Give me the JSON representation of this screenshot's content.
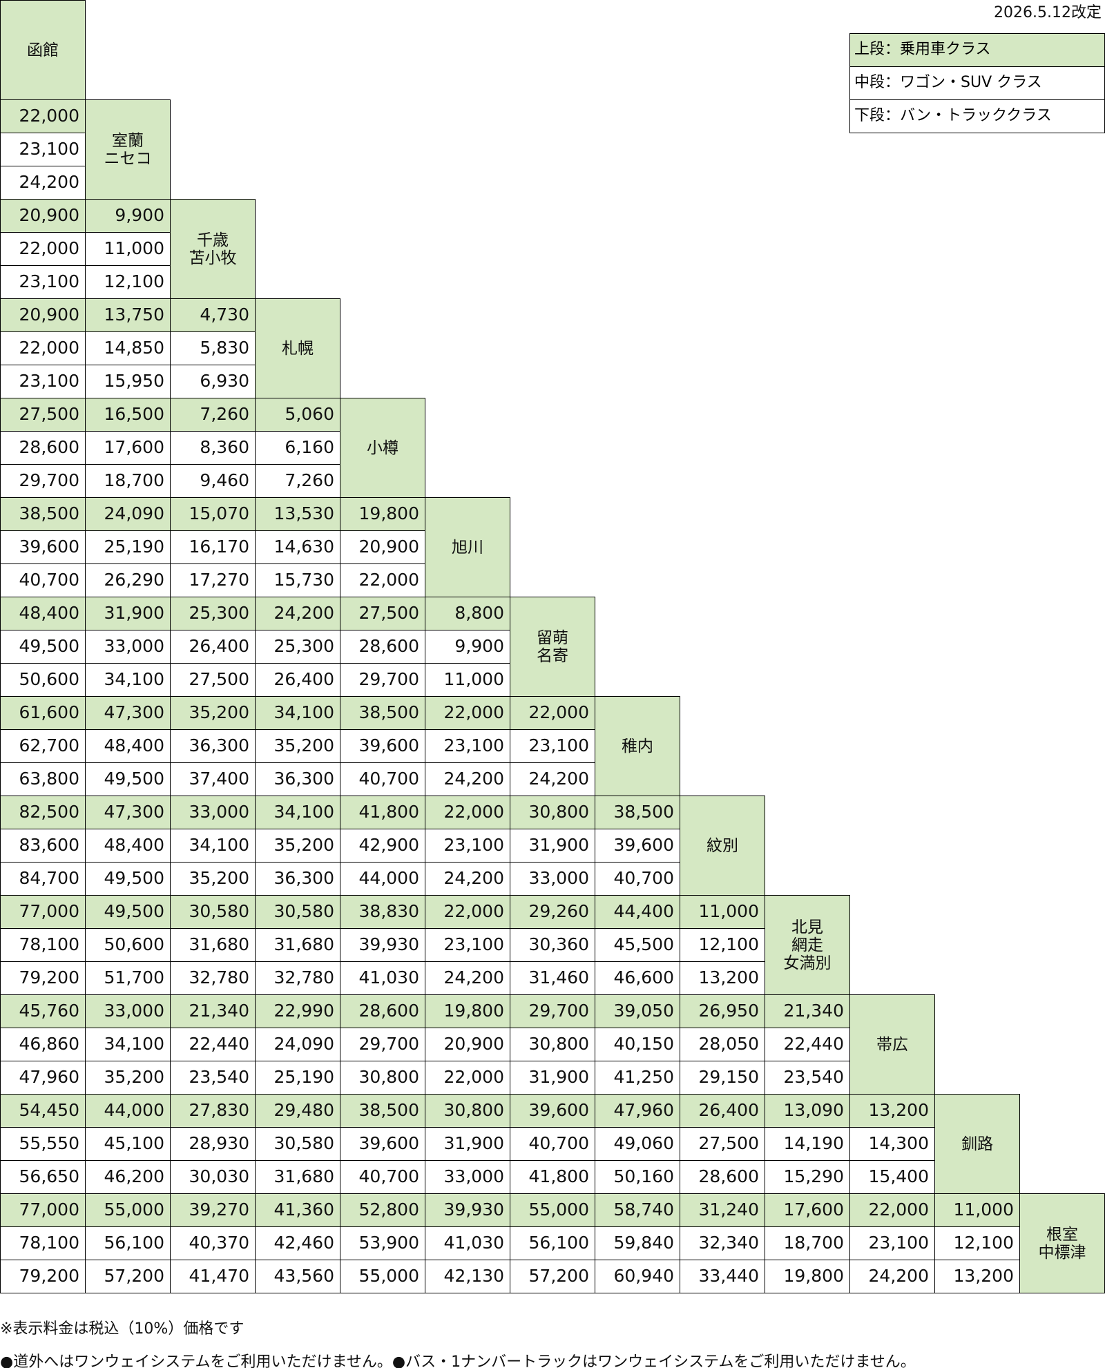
{
  "revision": "2026.5.12改定",
  "legend": [
    "上段：乗用車クラス",
    "中段：ワゴン・SUV クラス",
    "下段：バン・トラッククラス"
  ],
  "stations": [
    [
      "函館"
    ],
    [
      "室蘭",
      "ニセコ"
    ],
    [
      "千歳",
      "苫小牧"
    ],
    [
      "札幌"
    ],
    [
      "小樽"
    ],
    [
      "旭川"
    ],
    [
      "留萌",
      "名寄"
    ],
    [
      "稚内"
    ],
    [
      "紋別"
    ],
    [
      "北見",
      "網走",
      "女満別"
    ],
    [
      "帯広"
    ],
    [
      "釧路"
    ],
    [
      "根室",
      "中標津"
    ]
  ],
  "fares": [
    [],
    [
      [
        "22,000",
        "23,100",
        "24,200"
      ]
    ],
    [
      [
        "20,900",
        "22,000",
        "23,100"
      ],
      [
        "9,900",
        "11,000",
        "12,100"
      ]
    ],
    [
      [
        "20,900",
        "22,000",
        "23,100"
      ],
      [
        "13,750",
        "14,850",
        "15,950"
      ],
      [
        "4,730",
        "5,830",
        "6,930"
      ]
    ],
    [
      [
        "27,500",
        "28,600",
        "29,700"
      ],
      [
        "16,500",
        "17,600",
        "18,700"
      ],
      [
        "7,260",
        "8,360",
        "9,460"
      ],
      [
        "5,060",
        "6,160",
        "7,260"
      ]
    ],
    [
      [
        "38,500",
        "39,600",
        "40,700"
      ],
      [
        "24,090",
        "25,190",
        "26,290"
      ],
      [
        "15,070",
        "16,170",
        "17,270"
      ],
      [
        "13,530",
        "14,630",
        "15,730"
      ],
      [
        "19,800",
        "20,900",
        "22,000"
      ]
    ],
    [
      [
        "48,400",
        "49,500",
        "50,600"
      ],
      [
        "31,900",
        "33,000",
        "34,100"
      ],
      [
        "25,300",
        "26,400",
        "27,500"
      ],
      [
        "24,200",
        "25,300",
        "26,400"
      ],
      [
        "27,500",
        "28,600",
        "29,700"
      ],
      [
        "8,800",
        "9,900",
        "11,000"
      ]
    ],
    [
      [
        "61,600",
        "62,700",
        "63,800"
      ],
      [
        "47,300",
        "48,400",
        "49,500"
      ],
      [
        "35,200",
        "36,300",
        "37,400"
      ],
      [
        "34,100",
        "35,200",
        "36,300"
      ],
      [
        "38,500",
        "39,600",
        "40,700"
      ],
      [
        "22,000",
        "23,100",
        "24,200"
      ],
      [
        "22,000",
        "23,100",
        "24,200"
      ]
    ],
    [
      [
        "82,500",
        "83,600",
        "84,700"
      ],
      [
        "47,300",
        "48,400",
        "49,500"
      ],
      [
        "33,000",
        "34,100",
        "35,200"
      ],
      [
        "34,100",
        "35,200",
        "36,300"
      ],
      [
        "41,800",
        "42,900",
        "44,000"
      ],
      [
        "22,000",
        "23,100",
        "24,200"
      ],
      [
        "30,800",
        "31,900",
        "33,000"
      ],
      [
        "38,500",
        "39,600",
        "40,700"
      ]
    ],
    [
      [
        "77,000",
        "78,100",
        "79,200"
      ],
      [
        "49,500",
        "50,600",
        "51,700"
      ],
      [
        "30,580",
        "31,680",
        "32,780"
      ],
      [
        "30,580",
        "31,680",
        "32,780"
      ],
      [
        "38,830",
        "39,930",
        "41,030"
      ],
      [
        "22,000",
        "23,100",
        "24,200"
      ],
      [
        "29,260",
        "30,360",
        "31,460"
      ],
      [
        "44,400",
        "45,500",
        "46,600"
      ],
      [
        "11,000",
        "12,100",
        "13,200"
      ]
    ],
    [
      [
        "45,760",
        "46,860",
        "47,960"
      ],
      [
        "33,000",
        "34,100",
        "35,200"
      ],
      [
        "21,340",
        "22,440",
        "23,540"
      ],
      [
        "22,990",
        "24,090",
        "25,190"
      ],
      [
        "28,600",
        "29,700",
        "30,800"
      ],
      [
        "19,800",
        "20,900",
        "22,000"
      ],
      [
        "29,700",
        "30,800",
        "31,900"
      ],
      [
        "39,050",
        "40,150",
        "41,250"
      ],
      [
        "26,950",
        "28,050",
        "29,150"
      ],
      [
        "21,340",
        "22,440",
        "23,540"
      ]
    ],
    [
      [
        "54,450",
        "55,550",
        "56,650"
      ],
      [
        "44,000",
        "45,100",
        "46,200"
      ],
      [
        "27,830",
        "28,930",
        "30,030"
      ],
      [
        "29,480",
        "30,580",
        "31,680"
      ],
      [
        "38,500",
        "39,600",
        "40,700"
      ],
      [
        "30,800",
        "31,900",
        "33,000"
      ],
      [
        "39,600",
        "40,700",
        "41,800"
      ],
      [
        "47,960",
        "49,060",
        "50,160"
      ],
      [
        "26,400",
        "27,500",
        "28,600"
      ],
      [
        "13,090",
        "14,190",
        "15,290"
      ],
      [
        "13,200",
        "14,300",
        "15,400"
      ]
    ],
    [
      [
        "77,000",
        "78,100",
        "79,200"
      ],
      [
        "55,000",
        "56,100",
        "57,200"
      ],
      [
        "39,270",
        "40,370",
        "41,470"
      ],
      [
        "41,360",
        "42,460",
        "43,560"
      ],
      [
        "52,800",
        "53,900",
        "55,000"
      ],
      [
        "39,930",
        "41,030",
        "42,130"
      ],
      [
        "55,000",
        "56,100",
        "57,200"
      ],
      [
        "58,740",
        "59,840",
        "60,940"
      ],
      [
        "31,240",
        "32,340",
        "33,440"
      ],
      [
        "17,600",
        "18,700",
        "19,800"
      ],
      [
        "22,000",
        "23,100",
        "24,200"
      ],
      [
        "11,000",
        "12,100",
        "13,200"
      ]
    ]
  ],
  "notes": [
    "※表示料金は税込（10%）価格です",
    "●道外へはワンウェイシステムをご利用いただけません。●バス・1ナンバートラックはワンウェイシステムをご利用いただけません。"
  ]
}
